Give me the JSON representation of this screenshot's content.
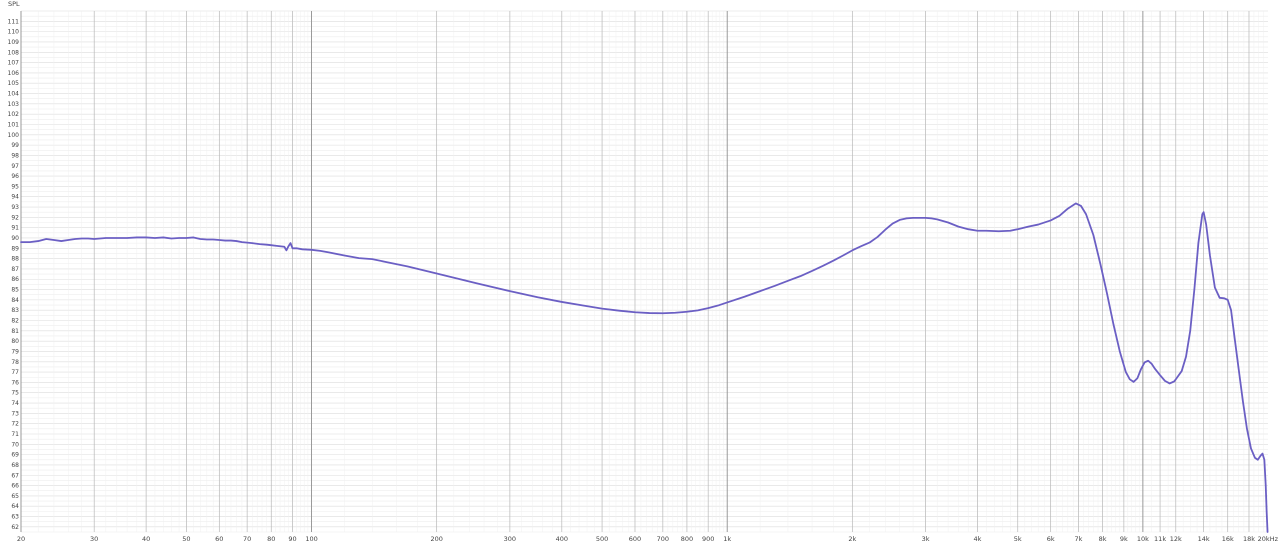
{
  "chart_data": {
    "type": "line",
    "title": "",
    "ylabel": "SPL",
    "xlabel": "",
    "x_scale": "log",
    "xlim": [
      20,
      20000
    ],
    "ylim": [
      61.5,
      112
    ],
    "grid": true,
    "line_color": "#6b5fc4",
    "grid_color_minor": "#e4e4e4",
    "grid_color_major": "#b8b8b8",
    "grid_color_decade": "#909090",
    "y_ticks": [
      62,
      63,
      64,
      65,
      66,
      67,
      68,
      69,
      70,
      71,
      72,
      73,
      74,
      75,
      76,
      77,
      78,
      79,
      80,
      81,
      82,
      83,
      84,
      85,
      86,
      87,
      88,
      89,
      90,
      91,
      92,
      93,
      94,
      95,
      96,
      97,
      98,
      99,
      100,
      101,
      102,
      103,
      104,
      105,
      106,
      107,
      108,
      109,
      110,
      111
    ],
    "x_ticks": [
      {
        "value": 20,
        "label": "20"
      },
      {
        "value": 30,
        "label": "30"
      },
      {
        "value": 40,
        "label": "40"
      },
      {
        "value": 50,
        "label": "50"
      },
      {
        "value": 60,
        "label": "60"
      },
      {
        "value": 70,
        "label": "70"
      },
      {
        "value": 80,
        "label": "80"
      },
      {
        "value": 90,
        "label": "90"
      },
      {
        "value": 100,
        "label": "100"
      },
      {
        "value": 200,
        "label": "200"
      },
      {
        "value": 300,
        "label": "300"
      },
      {
        "value": 400,
        "label": "400"
      },
      {
        "value": 500,
        "label": "500"
      },
      {
        "value": 600,
        "label": "600"
      },
      {
        "value": 700,
        "label": "700"
      },
      {
        "value": 800,
        "label": "800"
      },
      {
        "value": 900,
        "label": "900"
      },
      {
        "value": 1000,
        "label": "1k"
      },
      {
        "value": 2000,
        "label": "2k"
      },
      {
        "value": 3000,
        "label": "3k"
      },
      {
        "value": 4000,
        "label": "4k"
      },
      {
        "value": 5000,
        "label": "5k"
      },
      {
        "value": 6000,
        "label": "6k"
      },
      {
        "value": 7000,
        "label": "7k"
      },
      {
        "value": 8000,
        "label": "8k"
      },
      {
        "value": 9000,
        "label": "9k"
      },
      {
        "value": 10000,
        "label": "10k"
      },
      {
        "value": 11000,
        "label": "11k"
      },
      {
        "value": 12000,
        "label": "12k"
      },
      {
        "value": 14000,
        "label": "14k"
      },
      {
        "value": 16000,
        "label": "16k"
      },
      {
        "value": 18000,
        "label": "18k"
      },
      {
        "value": 20000,
        "label": "20kHz"
      }
    ],
    "series": [
      {
        "points": [
          [
            20,
            89.6
          ],
          [
            21,
            89.6
          ],
          [
            22,
            89.7
          ],
          [
            23,
            89.9
          ],
          [
            24,
            89.8
          ],
          [
            25,
            89.7
          ],
          [
            26,
            89.8
          ],
          [
            27,
            89.9
          ],
          [
            28,
            89.95
          ],
          [
            29,
            89.95
          ],
          [
            30,
            89.9
          ],
          [
            32,
            90.0
          ],
          [
            34,
            90.0
          ],
          [
            36,
            90.0
          ],
          [
            38,
            90.05
          ],
          [
            40,
            90.05
          ],
          [
            42,
            90.0
          ],
          [
            44,
            90.05
          ],
          [
            46,
            89.95
          ],
          [
            48,
            90.0
          ],
          [
            50,
            90.0
          ],
          [
            52,
            90.05
          ],
          [
            54,
            89.9
          ],
          [
            56,
            89.85
          ],
          [
            58,
            89.85
          ],
          [
            60,
            89.8
          ],
          [
            62,
            89.75
          ],
          [
            64,
            89.75
          ],
          [
            66,
            89.7
          ],
          [
            68,
            89.6
          ],
          [
            70,
            89.55
          ],
          [
            72,
            89.5
          ],
          [
            75,
            89.4
          ],
          [
            78,
            89.35
          ],
          [
            80,
            89.3
          ],
          [
            82,
            89.25
          ],
          [
            84,
            89.2
          ],
          [
            86,
            89.15
          ],
          [
            87,
            88.8
          ],
          [
            88,
            89.2
          ],
          [
            89,
            89.5
          ],
          [
            90,
            89.0
          ],
          [
            92,
            89.0
          ],
          [
            95,
            88.9
          ],
          [
            100,
            88.85
          ],
          [
            105,
            88.75
          ],
          [
            110,
            88.6
          ],
          [
            120,
            88.3
          ],
          [
            130,
            88.05
          ],
          [
            140,
            87.95
          ],
          [
            150,
            87.7
          ],
          [
            170,
            87.25
          ],
          [
            200,
            86.55
          ],
          [
            250,
            85.6
          ],
          [
            300,
            84.85
          ],
          [
            350,
            84.25
          ],
          [
            400,
            83.8
          ],
          [
            450,
            83.45
          ],
          [
            500,
            83.15
          ],
          [
            550,
            82.95
          ],
          [
            600,
            82.8
          ],
          [
            650,
            82.72
          ],
          [
            700,
            82.7
          ],
          [
            750,
            82.75
          ],
          [
            800,
            82.85
          ],
          [
            850,
            82.98
          ],
          [
            900,
            83.2
          ],
          [
            950,
            83.45
          ],
          [
            1000,
            83.75
          ],
          [
            1100,
            84.3
          ],
          [
            1200,
            84.85
          ],
          [
            1300,
            85.35
          ],
          [
            1400,
            85.85
          ],
          [
            1500,
            86.3
          ],
          [
            1600,
            86.8
          ],
          [
            1700,
            87.3
          ],
          [
            1800,
            87.8
          ],
          [
            1900,
            88.3
          ],
          [
            2000,
            88.8
          ],
          [
            2100,
            89.2
          ],
          [
            2200,
            89.55
          ],
          [
            2300,
            90.1
          ],
          [
            2400,
            90.8
          ],
          [
            2500,
            91.4
          ],
          [
            2600,
            91.75
          ],
          [
            2700,
            91.9
          ],
          [
            2800,
            91.95
          ],
          [
            2900,
            91.95
          ],
          [
            3000,
            91.95
          ],
          [
            3100,
            91.9
          ],
          [
            3200,
            91.8
          ],
          [
            3400,
            91.5
          ],
          [
            3600,
            91.1
          ],
          [
            3800,
            90.85
          ],
          [
            4000,
            90.7
          ],
          [
            4200,
            90.7
          ],
          [
            4500,
            90.65
          ],
          [
            4800,
            90.7
          ],
          [
            5000,
            90.85
          ],
          [
            5300,
            91.1
          ],
          [
            5600,
            91.3
          ],
          [
            6000,
            91.7
          ],
          [
            6300,
            92.15
          ],
          [
            6600,
            92.85
          ],
          [
            6900,
            93.35
          ],
          [
            7100,
            93.1
          ],
          [
            7300,
            92.3
          ],
          [
            7600,
            90.3
          ],
          [
            7900,
            87.5
          ],
          [
            8200,
            84.6
          ],
          [
            8500,
            81.6
          ],
          [
            8800,
            79.0
          ],
          [
            9100,
            77.0
          ],
          [
            9300,
            76.3
          ],
          [
            9500,
            76.05
          ],
          [
            9700,
            76.4
          ],
          [
            9900,
            77.3
          ],
          [
            10100,
            77.95
          ],
          [
            10300,
            78.1
          ],
          [
            10500,
            77.8
          ],
          [
            10700,
            77.3
          ],
          [
            11000,
            76.7
          ],
          [
            11300,
            76.15
          ],
          [
            11600,
            75.9
          ],
          [
            11900,
            76.1
          ],
          [
            12100,
            76.5
          ],
          [
            12400,
            77.1
          ],
          [
            12700,
            78.5
          ],
          [
            13000,
            81.0
          ],
          [
            13300,
            85.0
          ],
          [
            13600,
            89.5
          ],
          [
            13900,
            92.3
          ],
          [
            14000,
            92.5
          ],
          [
            14200,
            91.3
          ],
          [
            14500,
            88.3
          ],
          [
            14900,
            85.2
          ],
          [
            15300,
            84.2
          ],
          [
            15700,
            84.15
          ],
          [
            16000,
            84.0
          ],
          [
            16300,
            83.0
          ],
          [
            16600,
            80.5
          ],
          [
            17000,
            77.3
          ],
          [
            17400,
            74.2
          ],
          [
            17800,
            71.5
          ],
          [
            18200,
            69.6
          ],
          [
            18600,
            68.7
          ],
          [
            18900,
            68.5
          ],
          [
            19200,
            68.9
          ],
          [
            19400,
            69.1
          ],
          [
            19600,
            68.5
          ],
          [
            19750,
            66.0
          ],
          [
            19850,
            63.5
          ],
          [
            19950,
            61.5
          ]
        ]
      }
    ]
  }
}
